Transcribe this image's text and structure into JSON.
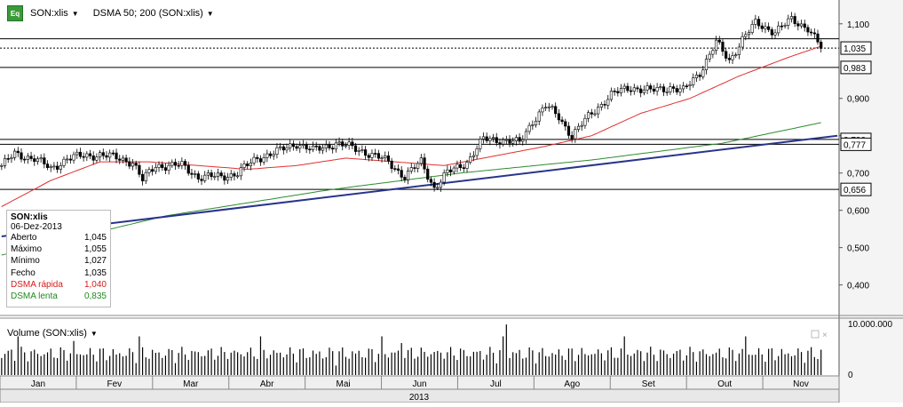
{
  "toolbar": {
    "badge": "Eq",
    "instrument": "SON:xlis",
    "indicator": "DSMA 50; 200 (SON:xlis)"
  },
  "info": {
    "title": "SON:xlis",
    "date": "06-Dez-2013",
    "rows": [
      {
        "label": "Aberto",
        "value": "1,045"
      },
      {
        "label": "Máximo",
        "value": "1,055"
      },
      {
        "label": "Mínimo",
        "value": "1,027"
      },
      {
        "label": "Fecho",
        "value": "1,035"
      },
      {
        "label": "DSMA rápida",
        "value": "1,040"
      },
      {
        "label": "DSMA lenta",
        "value": "0,835"
      }
    ]
  },
  "volume": {
    "title": "Volume (SON:xlis)",
    "max_label": "10.000.000",
    "zero_label": "0"
  },
  "colors": {
    "fast": "#e03030",
    "slow": "#2e8b2e",
    "trend": "#28348c",
    "candle": "#000000"
  },
  "chart_data": {
    "type": "line",
    "title": "",
    "instrument": "SON:xlis",
    "year": "2013",
    "months": [
      "Jan",
      "Fev",
      "Mar",
      "Abr",
      "Mai",
      "Jun",
      "Jul",
      "Ago",
      "Set",
      "Out",
      "Nov"
    ],
    "price_ticks": [
      "1,100",
      "0,900",
      "0,800",
      "0,700",
      "0,600",
      "0,500",
      "0,400"
    ],
    "price_tick_values": [
      1.1,
      0.9,
      0.8,
      0.7,
      0.6,
      0.5,
      0.4
    ],
    "ylim": [
      0.33,
      1.14
    ],
    "horizontal_levels": [
      {
        "value": 1.035,
        "label": "1,035",
        "style": "dotted"
      },
      {
        "value": 1.06,
        "label": "",
        "style": "solid"
      },
      {
        "value": 0.983,
        "label": "0,983",
        "style": "solid"
      },
      {
        "value": 0.79,
        "label": "0,790",
        "style": "solid"
      },
      {
        "value": 0.777,
        "label": "0,777",
        "style": "solid"
      },
      {
        "value": 0.656,
        "label": "0,656",
        "style": "solid"
      }
    ],
    "close_anchors": [
      {
        "x": 0,
        "y": 0.72
      },
      {
        "x": 4,
        "y": 0.75
      },
      {
        "x": 10,
        "y": 0.74
      },
      {
        "x": 15,
        "y": 0.71
      },
      {
        "x": 20,
        "y": 0.74
      },
      {
        "x": 30,
        "y": 0.75
      },
      {
        "x": 40,
        "y": 0.73
      },
      {
        "x": 43,
        "y": 0.68
      },
      {
        "x": 47,
        "y": 0.72
      },
      {
        "x": 55,
        "y": 0.72
      },
      {
        "x": 60,
        "y": 0.69
      },
      {
        "x": 67,
        "y": 0.69
      },
      {
        "x": 72,
        "y": 0.7
      },
      {
        "x": 78,
        "y": 0.74
      },
      {
        "x": 85,
        "y": 0.76
      },
      {
        "x": 90,
        "y": 0.78
      },
      {
        "x": 95,
        "y": 0.76
      },
      {
        "x": 102,
        "y": 0.78
      },
      {
        "x": 110,
        "y": 0.76
      },
      {
        "x": 118,
        "y": 0.73
      },
      {
        "x": 123,
        "y": 0.69
      },
      {
        "x": 128,
        "y": 0.73
      },
      {
        "x": 132,
        "y": 0.66
      },
      {
        "x": 136,
        "y": 0.7
      },
      {
        "x": 142,
        "y": 0.73
      },
      {
        "x": 147,
        "y": 0.79
      },
      {
        "x": 152,
        "y": 0.79
      },
      {
        "x": 158,
        "y": 0.78
      },
      {
        "x": 162,
        "y": 0.84
      },
      {
        "x": 166,
        "y": 0.88
      },
      {
        "x": 170,
        "y": 0.85
      },
      {
        "x": 174,
        "y": 0.8
      },
      {
        "x": 180,
        "y": 0.86
      },
      {
        "x": 186,
        "y": 0.91
      },
      {
        "x": 192,
        "y": 0.93
      },
      {
        "x": 198,
        "y": 0.92
      },
      {
        "x": 204,
        "y": 0.93
      },
      {
        "x": 208,
        "y": 0.92
      },
      {
        "x": 213,
        "y": 0.97
      },
      {
        "x": 218,
        "y": 1.05
      },
      {
        "x": 222,
        "y": 1.0
      },
      {
        "x": 226,
        "y": 1.06
      },
      {
        "x": 230,
        "y": 1.1
      },
      {
        "x": 236,
        "y": 1.08
      },
      {
        "x": 241,
        "y": 1.11
      },
      {
        "x": 246,
        "y": 1.09
      },
      {
        "x": 250,
        "y": 1.035
      }
    ],
    "dsma_fast_anchors": [
      {
        "x": 0,
        "y": 0.61
      },
      {
        "x": 15,
        "y": 0.68
      },
      {
        "x": 30,
        "y": 0.73
      },
      {
        "x": 45,
        "y": 0.73
      },
      {
        "x": 60,
        "y": 0.72
      },
      {
        "x": 75,
        "y": 0.71
      },
      {
        "x": 90,
        "y": 0.72
      },
      {
        "x": 105,
        "y": 0.74
      },
      {
        "x": 120,
        "y": 0.73
      },
      {
        "x": 135,
        "y": 0.72
      },
      {
        "x": 150,
        "y": 0.745
      },
      {
        "x": 165,
        "y": 0.77
      },
      {
        "x": 180,
        "y": 0.8
      },
      {
        "x": 195,
        "y": 0.86
      },
      {
        "x": 210,
        "y": 0.9
      },
      {
        "x": 225,
        "y": 0.96
      },
      {
        "x": 240,
        "y": 1.01
      },
      {
        "x": 250,
        "y": 1.04
      }
    ],
    "dsma_slow_anchors": [
      {
        "x": 0,
        "y": 0.48
      },
      {
        "x": 50,
        "y": 0.585
      },
      {
        "x": 100,
        "y": 0.655
      },
      {
        "x": 140,
        "y": 0.7
      },
      {
        "x": 180,
        "y": 0.735
      },
      {
        "x": 220,
        "y": 0.78
      },
      {
        "x": 250,
        "y": 0.835
      }
    ],
    "trendline": [
      {
        "x": 0,
        "y": 0.53
      },
      {
        "x": 255,
        "y": 0.8
      }
    ],
    "volume_ylim": [
      0,
      10000000
    ],
    "ylabel": "",
    "xlabel": "2013"
  }
}
